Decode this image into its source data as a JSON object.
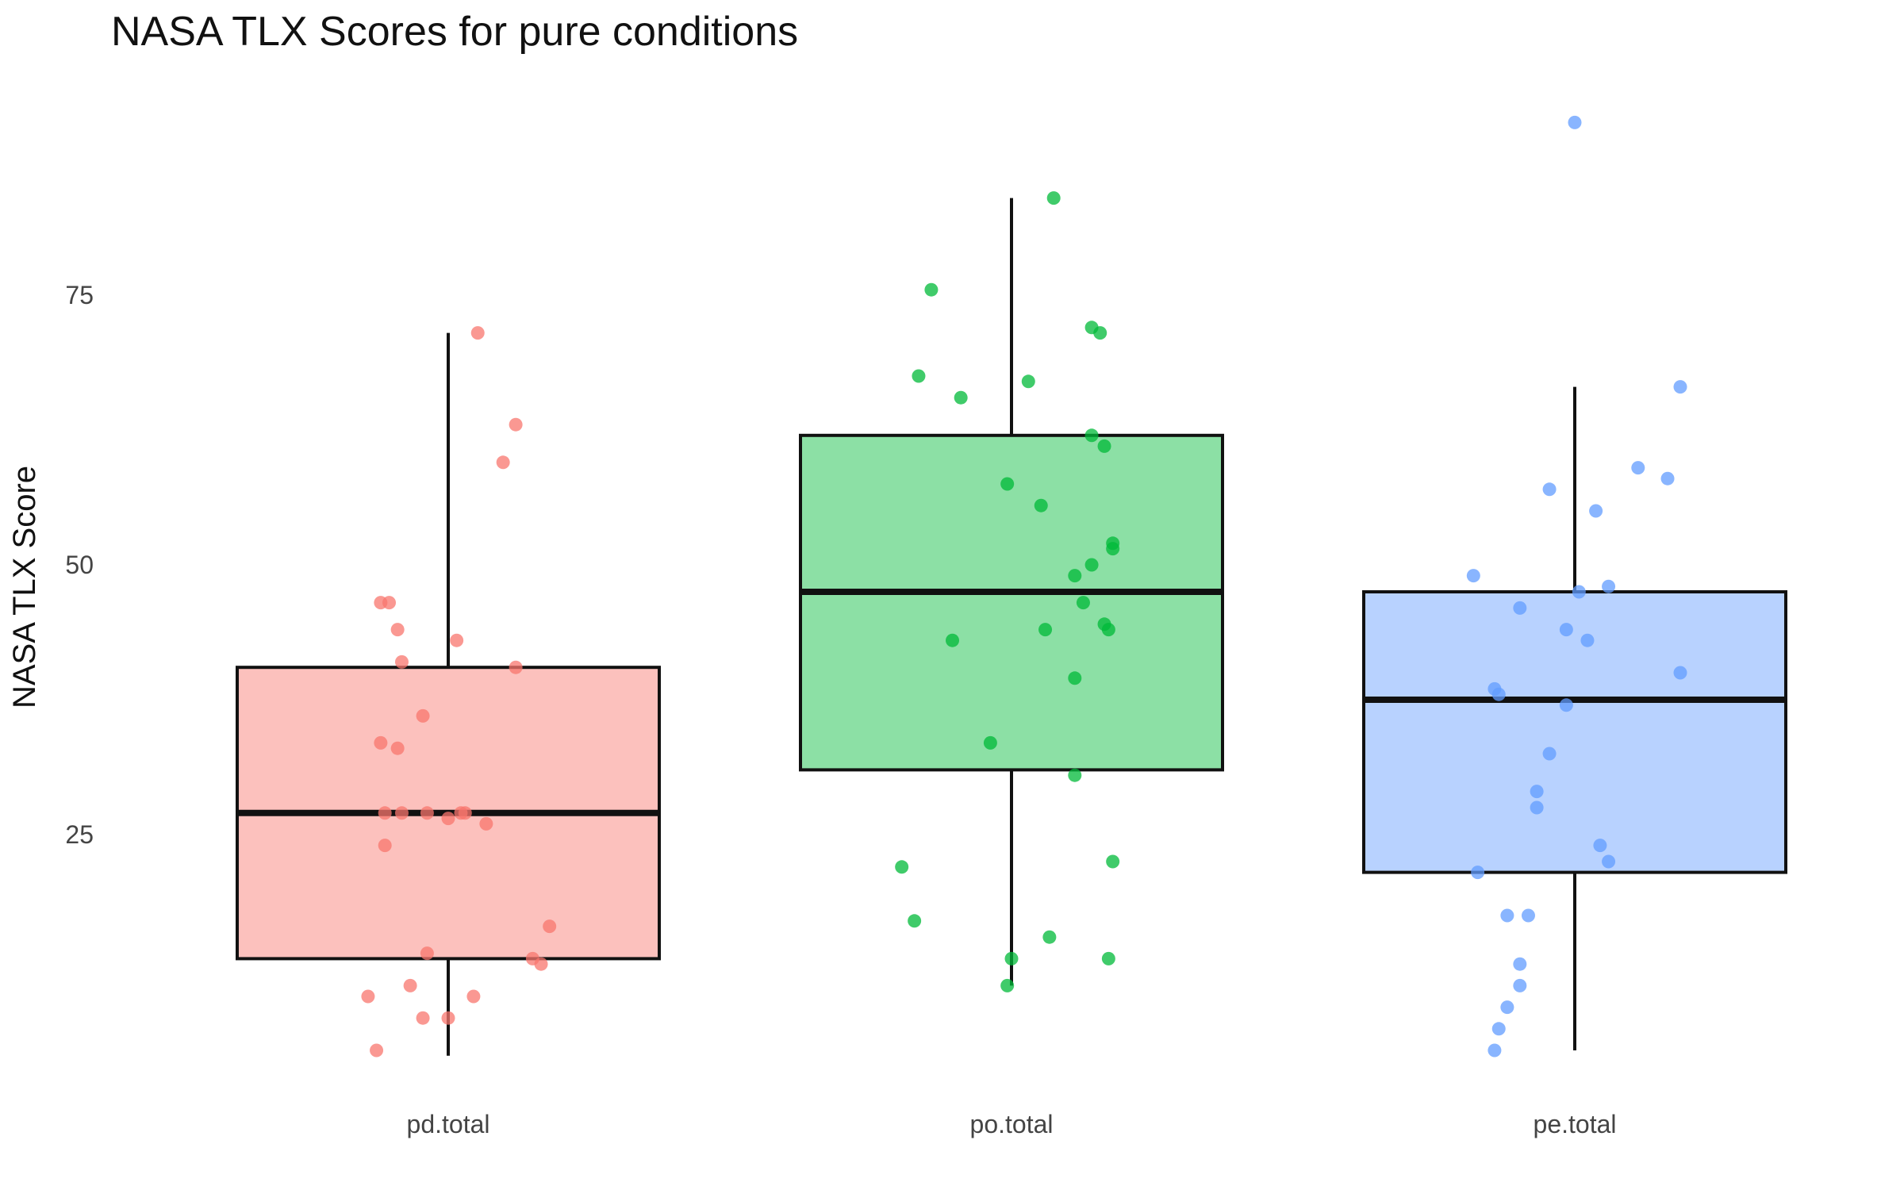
{
  "chart_data": {
    "type": "box",
    "title": "NASA TLX Scores for pure conditions",
    "xlabel": "",
    "ylabel": "NASA TLX Score",
    "ylim": [
      3,
      93
    ],
    "y_ticks": [
      25,
      50,
      75
    ],
    "grid": false,
    "legend": "none",
    "categories": [
      "pd.total",
      "po.total",
      "pe.total"
    ],
    "series": [
      {
        "category": "pd.total",
        "fill": "#F8766D",
        "box": {
          "min": 4.5,
          "q1": 13.5,
          "median": 27,
          "q3": 40.5,
          "max": 71.5
        },
        "points": [
          [
            -0.16,
            46.5
          ],
          [
            -0.14,
            46.5
          ],
          [
            -0.12,
            44
          ],
          [
            -0.11,
            41
          ],
          [
            -0.06,
            36
          ],
          [
            -0.16,
            33.5
          ],
          [
            -0.12,
            33
          ],
          [
            -0.15,
            27
          ],
          [
            -0.11,
            27
          ],
          [
            -0.05,
            27
          ],
          [
            0.0,
            26.5
          ],
          [
            0.03,
            27
          ],
          [
            0.04,
            27
          ],
          [
            0.09,
            26
          ],
          [
            -0.15,
            24
          ],
          [
            0.02,
            43
          ],
          [
            0.16,
            40.5
          ],
          [
            0.13,
            59.5
          ],
          [
            0.16,
            63
          ],
          [
            0.07,
            71.5
          ],
          [
            0.24,
            16.5
          ],
          [
            0.2,
            13.5
          ],
          [
            0.22,
            13
          ],
          [
            -0.05,
            14
          ],
          [
            -0.19,
            10
          ],
          [
            -0.09,
            11
          ],
          [
            0.06,
            10
          ],
          [
            -0.06,
            8
          ],
          [
            0.0,
            8
          ],
          [
            -0.17,
            5
          ]
        ]
      },
      {
        "category": "po.total",
        "fill": "#00BA38",
        "box": {
          "min": 11,
          "q1": 31,
          "median": 47.5,
          "q3": 62,
          "max": 84
        },
        "points": [
          [
            0.1,
            84
          ],
          [
            -0.19,
            75.5
          ],
          [
            0.19,
            72
          ],
          [
            0.21,
            71.5
          ],
          [
            -0.22,
            67.5
          ],
          [
            0.04,
            67
          ],
          [
            -0.12,
            65.5
          ],
          [
            0.19,
            62
          ],
          [
            0.22,
            61
          ],
          [
            -0.01,
            57.5
          ],
          [
            0.07,
            55.5
          ],
          [
            0.24,
            52
          ],
          [
            0.24,
            51.5
          ],
          [
            0.19,
            50
          ],
          [
            0.15,
            49
          ],
          [
            0.17,
            46.5
          ],
          [
            0.22,
            44.5
          ],
          [
            0.23,
            44
          ],
          [
            0.08,
            44
          ],
          [
            -0.14,
            43
          ],
          [
            0.15,
            39.5
          ],
          [
            -0.05,
            33.5
          ],
          [
            0.15,
            30.5
          ],
          [
            -0.26,
            22
          ],
          [
            0.24,
            22.5
          ],
          [
            -0.23,
            17
          ],
          [
            0.09,
            15.5
          ],
          [
            0.0,
            13.5
          ],
          [
            0.23,
            13.5
          ],
          [
            -0.01,
            11
          ]
        ]
      },
      {
        "category": "pe.total",
        "fill": "#619CFF",
        "box": {
          "min": 5,
          "q1": 21.5,
          "median": 37.5,
          "q3": 47.5,
          "max": 66.5
        },
        "points": [
          [
            0.0,
            91
          ],
          [
            0.25,
            66.5
          ],
          [
            0.15,
            59
          ],
          [
            0.22,
            58
          ],
          [
            -0.06,
            57
          ],
          [
            0.05,
            55
          ],
          [
            -0.24,
            49
          ],
          [
            0.08,
            48
          ],
          [
            0.01,
            47.5
          ],
          [
            -0.13,
            46
          ],
          [
            -0.02,
            44
          ],
          [
            0.03,
            43
          ],
          [
            0.25,
            40
          ],
          [
            -0.19,
            38.5
          ],
          [
            -0.18,
            38
          ],
          [
            -0.02,
            37
          ],
          [
            -0.06,
            32.5
          ],
          [
            -0.09,
            29
          ],
          [
            -0.09,
            27.5
          ],
          [
            0.06,
            24
          ],
          [
            0.08,
            22.5
          ],
          [
            -0.23,
            21.5
          ],
          [
            -0.16,
            17.5
          ],
          [
            -0.11,
            17.5
          ],
          [
            -0.13,
            13
          ],
          [
            -0.13,
            11
          ],
          [
            -0.16,
            9
          ],
          [
            -0.18,
            7
          ],
          [
            -0.19,
            5
          ]
        ]
      }
    ]
  }
}
